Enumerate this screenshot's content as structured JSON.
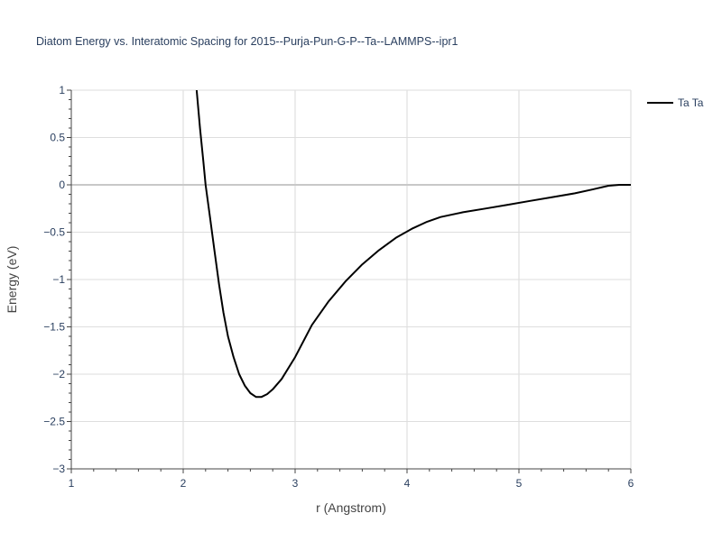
{
  "chart_data": {
    "type": "line",
    "title": "Diatom Energy vs. Interatomic Spacing for 2015--Purja-Pun-G-P--Ta--LAMMPS--ipr1",
    "xlabel": "r (Angstrom)",
    "ylabel": "Energy (eV)",
    "xlim": [
      1,
      6
    ],
    "ylim": [
      -3,
      1
    ],
    "x_ticks": [
      "1",
      "2",
      "3",
      "4",
      "5",
      "6"
    ],
    "y_ticks": [
      "1",
      "0.5",
      "0",
      "−0.5",
      "−1",
      "−1.5",
      "−2",
      "−2.5",
      "−3"
    ],
    "grid": true,
    "legend": "top-right",
    "series": [
      {
        "name": "Ta Ta",
        "color": "#000000",
        "x": [
          2.12,
          2.15,
          2.18,
          2.2,
          2.24,
          2.28,
          2.32,
          2.36,
          2.4,
          2.45,
          2.5,
          2.55,
          2.6,
          2.65,
          2.7,
          2.75,
          2.8,
          2.88,
          3.0,
          3.15,
          3.3,
          3.45,
          3.6,
          3.75,
          3.9,
          4.05,
          4.18,
          4.3,
          4.5,
          4.7,
          4.9,
          5.1,
          5.3,
          5.5,
          5.65,
          5.8,
          5.9,
          6.0
        ],
        "y": [
          1.0,
          0.6,
          0.25,
          0.0,
          -0.35,
          -0.7,
          -1.05,
          -1.35,
          -1.6,
          -1.82,
          -2.0,
          -2.12,
          -2.2,
          -2.24,
          -2.24,
          -2.21,
          -2.16,
          -2.05,
          -1.82,
          -1.48,
          -1.23,
          -1.02,
          -0.84,
          -0.69,
          -0.56,
          -0.46,
          -0.39,
          -0.34,
          -0.29,
          -0.25,
          -0.21,
          -0.17,
          -0.13,
          -0.09,
          -0.05,
          -0.01,
          0.0,
          0.0
        ]
      }
    ]
  }
}
